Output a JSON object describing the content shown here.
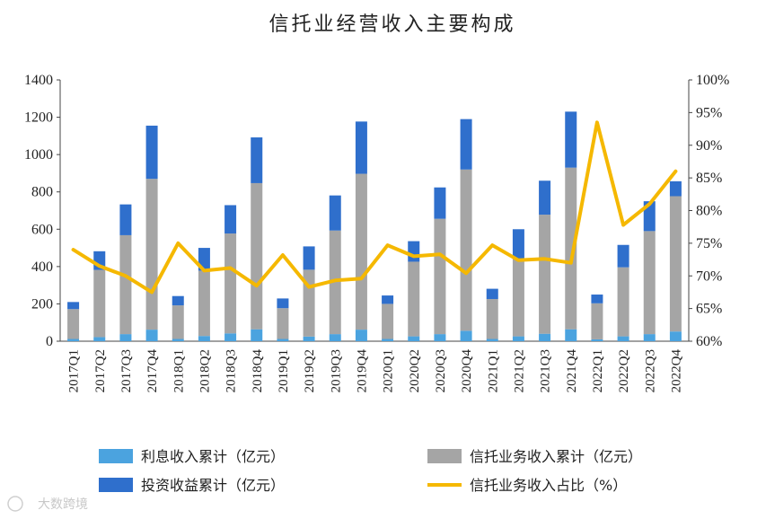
{
  "chart_data": {
    "type": "bar",
    "title": "信托业经营收入主要构成",
    "categories": [
      "2017Q1",
      "2017Q2",
      "2017Q3",
      "2017Q4",
      "2018Q1",
      "2018Q2",
      "2018Q3",
      "2018Q4",
      "2019Q1",
      "2019Q2",
      "2019Q3",
      "2019Q4",
      "2020Q1",
      "2020Q2",
      "2020Q3",
      "2020Q4",
      "2021Q1",
      "2021Q2",
      "2021Q3",
      "2021Q4",
      "2022Q1",
      "2022Q2",
      "2022Q3",
      "2022Q4"
    ],
    "series": [
      {
        "name": "利息收入累计（亿元）",
        "kind": "stacked-bar",
        "axis": "left",
        "color": "#4BA3DF",
        "values": [
          12,
          22,
          38,
          62,
          12,
          28,
          42,
          64,
          12,
          25,
          38,
          62,
          12,
          26,
          38,
          56,
          12,
          26,
          40,
          64,
          10,
          26,
          38,
          52
        ]
      },
      {
        "name": "信托业务收入累计（亿元）",
        "kind": "stacked-bar",
        "axis": "left",
        "color": "#A5A5A5",
        "values": [
          160,
          360,
          530,
          808,
          180,
          350,
          535,
          783,
          165,
          358,
          555,
          835,
          188,
          400,
          618,
          864,
          214,
          414,
          638,
          866,
          193,
          370,
          552,
          725
        ]
      },
      {
        "name": "投资收益累计（亿元）",
        "kind": "stacked-bar",
        "axis": "left",
        "color": "#2F6FCC",
        "values": [
          38,
          100,
          165,
          285,
          50,
          122,
          152,
          245,
          52,
          125,
          188,
          280,
          45,
          110,
          168,
          270,
          55,
          160,
          182,
          300,
          47,
          120,
          160,
          80
        ]
      },
      {
        "name": "信托业务收入占比（%）",
        "kind": "line",
        "axis": "right",
        "color": "#F5B800",
        "values": [
          74.0,
          71.5,
          70.0,
          67.5,
          75.0,
          70.8,
          71.2,
          68.5,
          73.2,
          68.3,
          69.3,
          69.6,
          74.7,
          73.0,
          73.3,
          70.4,
          74.7,
          72.4,
          72.6,
          72.0,
          93.5,
          77.8,
          81.0,
          86.0
        ]
      }
    ],
    "left_axis": {
      "min": 0,
      "max": 1400,
      "ticks": [
        "0",
        "200",
        "400",
        "600",
        "800",
        "1000",
        "1200",
        "1400"
      ]
    },
    "right_axis": {
      "min": 60,
      "max": 100,
      "ticks": [
        "60%",
        "65%",
        "70%",
        "75%",
        "80%",
        "85%",
        "90%",
        "95%",
        "100%"
      ]
    },
    "legend": [
      "利息收入累计（亿元）",
      "信托业务收入累计（亿元）",
      "投资收益累计（亿元）",
      "信托业务收入占比（%）"
    ],
    "legend_position": "bottom"
  },
  "watermark": "大数跨境"
}
